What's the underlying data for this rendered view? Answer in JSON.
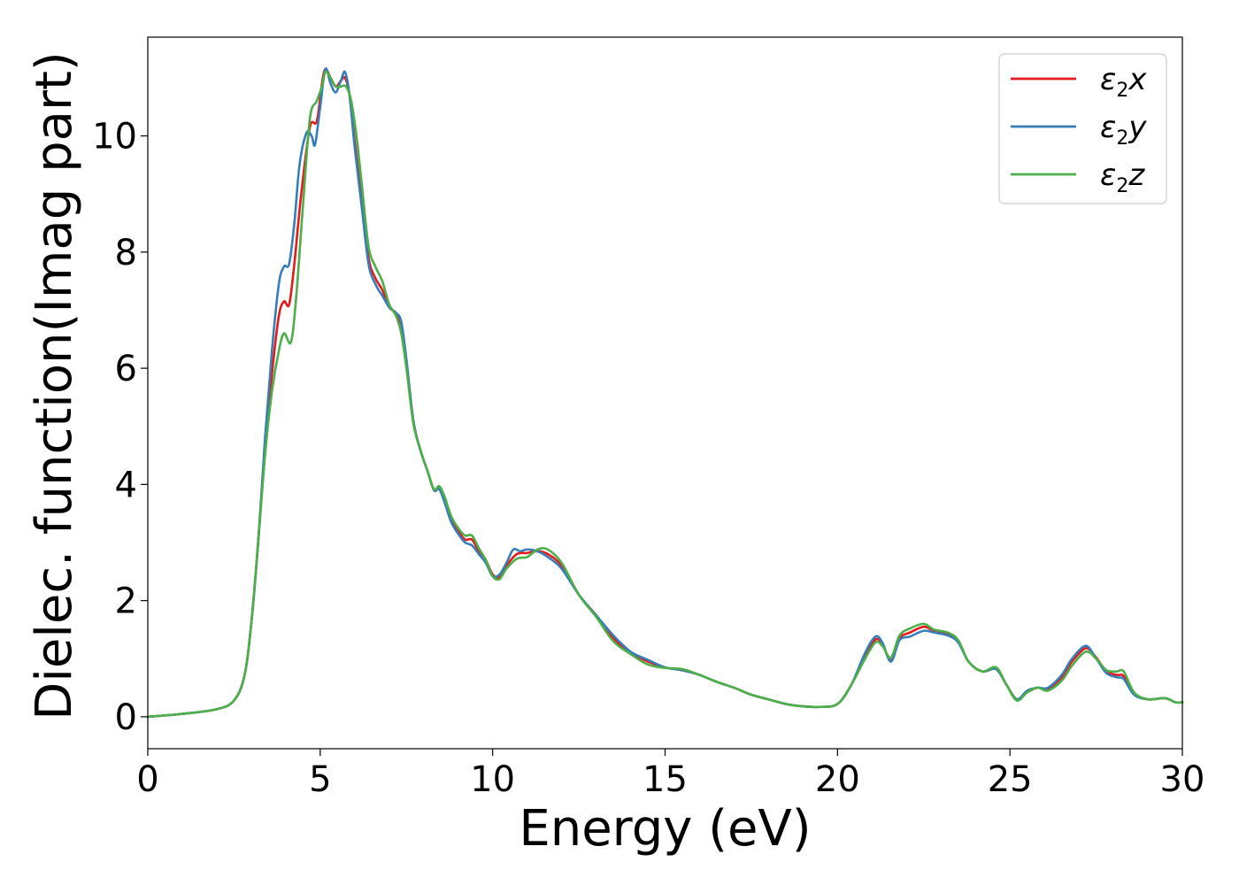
{
  "chart_data": {
    "type": "line",
    "xlabel": "Energy (eV)",
    "ylabel": "Dielec. function(Imag part)",
    "xlim": [
      0,
      30
    ],
    "ylim": [
      -0.55,
      11.7
    ],
    "xticks": [
      0,
      5,
      10,
      15,
      20,
      25,
      30
    ],
    "yticks": [
      0,
      2,
      4,
      6,
      8,
      10
    ],
    "grid": false,
    "legend_position": "top-right",
    "series": [
      {
        "name": "ε2x",
        "legend_base": "ε",
        "legend_sub": "2",
        "legend_var": "x",
        "color": "#e41a1c",
        "points": [
          [
            0,
            0
          ],
          [
            1,
            0.05
          ],
          [
            2,
            0.13
          ],
          [
            2.5,
            0.28
          ],
          [
            2.8,
            0.7
          ],
          [
            3.0,
            1.6
          ],
          [
            3.2,
            3.0
          ],
          [
            3.4,
            4.6
          ],
          [
            3.6,
            5.9
          ],
          [
            3.8,
            6.9
          ],
          [
            3.95,
            7.15
          ],
          [
            4.1,
            7.1
          ],
          [
            4.25,
            7.8
          ],
          [
            4.45,
            9.0
          ],
          [
            4.7,
            10.15
          ],
          [
            4.9,
            10.25
          ],
          [
            5.05,
            10.9
          ],
          [
            5.15,
            11.15
          ],
          [
            5.3,
            11.0
          ],
          [
            5.45,
            10.85
          ],
          [
            5.6,
            10.95
          ],
          [
            5.72,
            11.0
          ],
          [
            5.85,
            10.7
          ],
          [
            6.0,
            9.9
          ],
          [
            6.2,
            8.9
          ],
          [
            6.4,
            7.9
          ],
          [
            6.6,
            7.55
          ],
          [
            6.8,
            7.35
          ],
          [
            7.0,
            7.05
          ],
          [
            7.2,
            6.95
          ],
          [
            7.35,
            6.7
          ],
          [
            7.5,
            6.1
          ],
          [
            7.7,
            5.1
          ],
          [
            7.9,
            4.6
          ],
          [
            8.1,
            4.25
          ],
          [
            8.3,
            3.9
          ],
          [
            8.45,
            3.95
          ],
          [
            8.6,
            3.75
          ],
          [
            8.8,
            3.4
          ],
          [
            9.0,
            3.2
          ],
          [
            9.2,
            3.05
          ],
          [
            9.4,
            3.05
          ],
          [
            9.6,
            2.85
          ],
          [
            9.8,
            2.7
          ],
          [
            10.0,
            2.45
          ],
          [
            10.2,
            2.4
          ],
          [
            10.4,
            2.6
          ],
          [
            10.7,
            2.8
          ],
          [
            11.0,
            2.82
          ],
          [
            11.3,
            2.85
          ],
          [
            11.6,
            2.8
          ],
          [
            12.0,
            2.6
          ],
          [
            12.5,
            2.1
          ],
          [
            13.0,
            1.75
          ],
          [
            13.5,
            1.35
          ],
          [
            14.0,
            1.1
          ],
          [
            14.5,
            0.95
          ],
          [
            15.0,
            0.85
          ],
          [
            15.5,
            0.8
          ],
          [
            16.0,
            0.72
          ],
          [
            16.5,
            0.6
          ],
          [
            17.0,
            0.5
          ],
          [
            17.5,
            0.38
          ],
          [
            18.0,
            0.3
          ],
          [
            18.5,
            0.22
          ],
          [
            19.0,
            0.18
          ],
          [
            19.5,
            0.17
          ],
          [
            20.0,
            0.22
          ],
          [
            20.4,
            0.55
          ],
          [
            20.8,
            1.05
          ],
          [
            21.1,
            1.33
          ],
          [
            21.3,
            1.25
          ],
          [
            21.55,
            0.97
          ],
          [
            21.8,
            1.35
          ],
          [
            22.1,
            1.45
          ],
          [
            22.5,
            1.55
          ],
          [
            22.8,
            1.48
          ],
          [
            23.2,
            1.42
          ],
          [
            23.5,
            1.3
          ],
          [
            23.8,
            0.95
          ],
          [
            24.2,
            0.78
          ],
          [
            24.6,
            0.82
          ],
          [
            24.9,
            0.55
          ],
          [
            25.2,
            0.3
          ],
          [
            25.5,
            0.42
          ],
          [
            25.8,
            0.5
          ],
          [
            26.1,
            0.48
          ],
          [
            26.5,
            0.68
          ],
          [
            26.8,
            0.95
          ],
          [
            27.2,
            1.18
          ],
          [
            27.5,
            1.02
          ],
          [
            27.8,
            0.78
          ],
          [
            28.1,
            0.72
          ],
          [
            28.3,
            0.7
          ],
          [
            28.6,
            0.4
          ],
          [
            29.0,
            0.3
          ],
          [
            29.5,
            0.32
          ],
          [
            29.8,
            0.25
          ],
          [
            30,
            0.25
          ]
        ]
      },
      {
        "name": "ε2y",
        "legend_base": "ε",
        "legend_sub": "2",
        "legend_var": "y",
        "color": "#377eb8",
        "points": [
          [
            0,
            0
          ],
          [
            1,
            0.05
          ],
          [
            2,
            0.13
          ],
          [
            2.5,
            0.28
          ],
          [
            2.8,
            0.7
          ],
          [
            3.0,
            1.6
          ],
          [
            3.2,
            3.0
          ],
          [
            3.4,
            4.8
          ],
          [
            3.6,
            6.3
          ],
          [
            3.8,
            7.45
          ],
          [
            3.95,
            7.75
          ],
          [
            4.1,
            7.8
          ],
          [
            4.25,
            8.5
          ],
          [
            4.4,
            9.5
          ],
          [
            4.6,
            10.05
          ],
          [
            4.75,
            10.0
          ],
          [
            4.85,
            9.85
          ],
          [
            5.0,
            10.5
          ],
          [
            5.15,
            11.15
          ],
          [
            5.3,
            10.9
          ],
          [
            5.45,
            10.75
          ],
          [
            5.6,
            10.95
          ],
          [
            5.72,
            11.1
          ],
          [
            5.85,
            10.7
          ],
          [
            6.0,
            9.8
          ],
          [
            6.2,
            8.8
          ],
          [
            6.4,
            7.8
          ],
          [
            6.6,
            7.45
          ],
          [
            6.8,
            7.25
          ],
          [
            7.0,
            7.05
          ],
          [
            7.2,
            6.95
          ],
          [
            7.35,
            6.8
          ],
          [
            7.5,
            6.15
          ],
          [
            7.7,
            5.1
          ],
          [
            7.9,
            4.6
          ],
          [
            8.1,
            4.25
          ],
          [
            8.3,
            3.9
          ],
          [
            8.45,
            3.92
          ],
          [
            8.6,
            3.7
          ],
          [
            8.8,
            3.35
          ],
          [
            9.0,
            3.15
          ],
          [
            9.2,
            3.0
          ],
          [
            9.4,
            2.95
          ],
          [
            9.6,
            2.8
          ],
          [
            9.8,
            2.65
          ],
          [
            10.0,
            2.42
          ],
          [
            10.2,
            2.45
          ],
          [
            10.4,
            2.65
          ],
          [
            10.6,
            2.88
          ],
          [
            10.8,
            2.85
          ],
          [
            11.0,
            2.88
          ],
          [
            11.3,
            2.85
          ],
          [
            11.6,
            2.75
          ],
          [
            12.0,
            2.55
          ],
          [
            12.5,
            2.1
          ],
          [
            13.0,
            1.75
          ],
          [
            13.5,
            1.4
          ],
          [
            14.0,
            1.12
          ],
          [
            14.5,
            0.98
          ],
          [
            15.0,
            0.85
          ],
          [
            15.5,
            0.8
          ],
          [
            16.0,
            0.72
          ],
          [
            16.5,
            0.6
          ],
          [
            17.0,
            0.5
          ],
          [
            17.5,
            0.38
          ],
          [
            18.0,
            0.3
          ],
          [
            18.5,
            0.22
          ],
          [
            19.0,
            0.18
          ],
          [
            19.5,
            0.17
          ],
          [
            20.0,
            0.22
          ],
          [
            20.4,
            0.55
          ],
          [
            20.8,
            1.1
          ],
          [
            21.1,
            1.38
          ],
          [
            21.3,
            1.28
          ],
          [
            21.55,
            0.95
          ],
          [
            21.8,
            1.32
          ],
          [
            22.1,
            1.38
          ],
          [
            22.5,
            1.48
          ],
          [
            22.8,
            1.45
          ],
          [
            23.2,
            1.4
          ],
          [
            23.5,
            1.28
          ],
          [
            23.8,
            0.95
          ],
          [
            24.2,
            0.78
          ],
          [
            24.6,
            0.82
          ],
          [
            24.9,
            0.55
          ],
          [
            25.2,
            0.3
          ],
          [
            25.5,
            0.45
          ],
          [
            25.8,
            0.5
          ],
          [
            26.1,
            0.5
          ],
          [
            26.5,
            0.72
          ],
          [
            26.8,
            1.0
          ],
          [
            27.2,
            1.22
          ],
          [
            27.5,
            1.0
          ],
          [
            27.8,
            0.75
          ],
          [
            28.1,
            0.68
          ],
          [
            28.3,
            0.65
          ],
          [
            28.6,
            0.38
          ],
          [
            29.0,
            0.3
          ],
          [
            29.5,
            0.32
          ],
          [
            29.8,
            0.25
          ],
          [
            30,
            0.25
          ]
        ]
      },
      {
        "name": "ε2z",
        "legend_base": "ε",
        "legend_sub": "2",
        "legend_var": "z",
        "color": "#4daf4a",
        "points": [
          [
            0,
            0
          ],
          [
            1,
            0.05
          ],
          [
            2,
            0.13
          ],
          [
            2.5,
            0.28
          ],
          [
            2.8,
            0.7
          ],
          [
            3.0,
            1.6
          ],
          [
            3.2,
            3.0
          ],
          [
            3.4,
            4.5
          ],
          [
            3.6,
            5.6
          ],
          [
            3.8,
            6.3
          ],
          [
            3.95,
            6.6
          ],
          [
            4.15,
            6.45
          ],
          [
            4.3,
            7.2
          ],
          [
            4.5,
            8.8
          ],
          [
            4.7,
            10.3
          ],
          [
            4.9,
            10.6
          ],
          [
            5.05,
            10.85
          ],
          [
            5.15,
            11.1
          ],
          [
            5.3,
            11.0
          ],
          [
            5.45,
            10.85
          ],
          [
            5.6,
            10.85
          ],
          [
            5.75,
            10.85
          ],
          [
            5.9,
            10.6
          ],
          [
            6.05,
            10.0
          ],
          [
            6.2,
            9.2
          ],
          [
            6.4,
            8.1
          ],
          [
            6.6,
            7.75
          ],
          [
            6.8,
            7.5
          ],
          [
            7.0,
            7.1
          ],
          [
            7.2,
            6.9
          ],
          [
            7.35,
            6.6
          ],
          [
            7.5,
            6.0
          ],
          [
            7.7,
            5.05
          ],
          [
            7.9,
            4.6
          ],
          [
            8.1,
            4.25
          ],
          [
            8.3,
            3.92
          ],
          [
            8.45,
            3.97
          ],
          [
            8.6,
            3.8
          ],
          [
            8.8,
            3.45
          ],
          [
            9.0,
            3.25
          ],
          [
            9.2,
            3.12
          ],
          [
            9.4,
            3.12
          ],
          [
            9.6,
            2.9
          ],
          [
            9.8,
            2.7
          ],
          [
            10.0,
            2.42
          ],
          [
            10.2,
            2.37
          ],
          [
            10.4,
            2.55
          ],
          [
            10.7,
            2.72
          ],
          [
            11.0,
            2.75
          ],
          [
            11.3,
            2.88
          ],
          [
            11.6,
            2.88
          ],
          [
            12.0,
            2.65
          ],
          [
            12.5,
            2.1
          ],
          [
            13.0,
            1.72
          ],
          [
            13.5,
            1.3
          ],
          [
            14.0,
            1.08
          ],
          [
            14.5,
            0.9
          ],
          [
            15.0,
            0.84
          ],
          [
            15.5,
            0.82
          ],
          [
            16.0,
            0.72
          ],
          [
            16.5,
            0.6
          ],
          [
            17.0,
            0.5
          ],
          [
            17.5,
            0.38
          ],
          [
            18.0,
            0.3
          ],
          [
            18.5,
            0.22
          ],
          [
            19.0,
            0.18
          ],
          [
            19.5,
            0.17
          ],
          [
            20.0,
            0.22
          ],
          [
            20.4,
            0.55
          ],
          [
            20.8,
            1.0
          ],
          [
            21.1,
            1.28
          ],
          [
            21.3,
            1.22
          ],
          [
            21.55,
            1.02
          ],
          [
            21.8,
            1.4
          ],
          [
            22.1,
            1.52
          ],
          [
            22.5,
            1.6
          ],
          [
            22.8,
            1.5
          ],
          [
            23.2,
            1.45
          ],
          [
            23.5,
            1.32
          ],
          [
            23.8,
            0.95
          ],
          [
            24.2,
            0.78
          ],
          [
            24.6,
            0.85
          ],
          [
            24.9,
            0.55
          ],
          [
            25.2,
            0.28
          ],
          [
            25.5,
            0.42
          ],
          [
            25.8,
            0.5
          ],
          [
            26.1,
            0.45
          ],
          [
            26.5,
            0.62
          ],
          [
            26.8,
            0.88
          ],
          [
            27.2,
            1.12
          ],
          [
            27.5,
            1.0
          ],
          [
            27.8,
            0.8
          ],
          [
            28.1,
            0.78
          ],
          [
            28.3,
            0.78
          ],
          [
            28.6,
            0.42
          ],
          [
            29.0,
            0.3
          ],
          [
            29.5,
            0.32
          ],
          [
            29.8,
            0.25
          ],
          [
            30,
            0.25
          ]
        ]
      }
    ]
  }
}
